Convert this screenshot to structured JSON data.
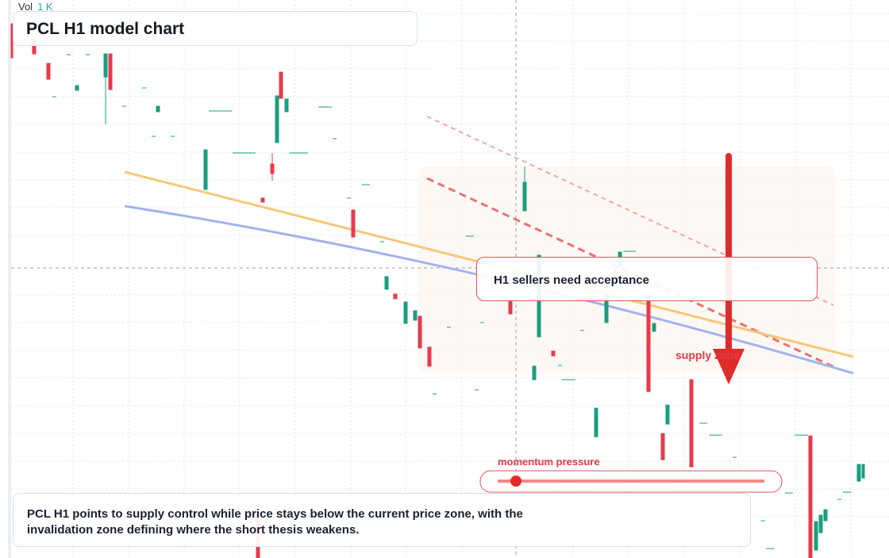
{
  "header": {
    "vol_label": "Vol",
    "vol_value": "1 K",
    "title": "PCL H1 model chart"
  },
  "annotations": {
    "callout": "H1 sellers need acceptance",
    "supply_zone": "supply zone",
    "momentum": "momentum pressure"
  },
  "caption": {
    "text": "PCL H1 points to supply control while price stays below the current price zone, with the invalidation zone defining where the short thesis weakens."
  }
}
